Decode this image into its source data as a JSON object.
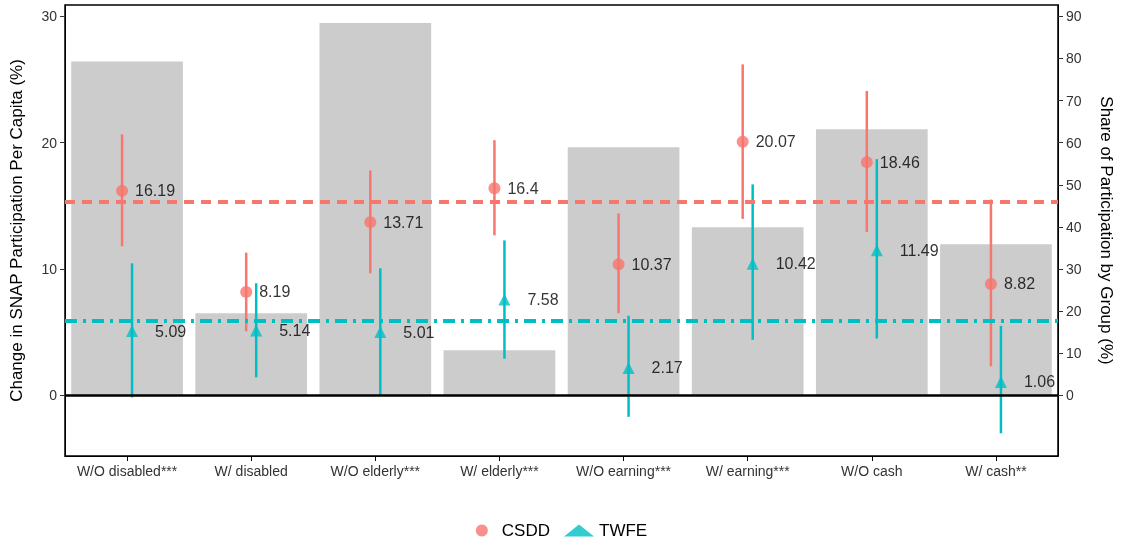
{
  "chart_data": {
    "type": "bar",
    "ylabel": "Change in SNAP Participation Per Capita (%)",
    "y2label": "Share of Participation by Group (%)",
    "categories": [
      "W/O disabled***",
      "W/ disabled",
      "W/O elderly***",
      "W/ elderly***",
      "W/O earning***",
      "W/ earning***",
      "W/O cash",
      "W/ cash**"
    ],
    "ylim": [
      -4.8,
      30.9
    ],
    "yticks": [
      0,
      10,
      20,
      30
    ],
    "y2lim": [
      -14.4,
      92.7
    ],
    "y2ticks": [
      0,
      10,
      20,
      30,
      40,
      50,
      60,
      70,
      80,
      90
    ],
    "series": [
      {
        "axis": "y2",
        "color": "#cccccc",
        "values": [
          79.3,
          19.5,
          88.4,
          10.7,
          58.9,
          39.9,
          63.2,
          35.9
        ]
      },
      {
        "type": "scatter",
        "name": "CSDD",
        "color": "#f8766d",
        "marker": "circle",
        "values": [
          16.19,
          8.19,
          13.71,
          16.4,
          10.37,
          20.07,
          18.46,
          8.82
        ],
        "value_labels": [
          "16.19",
          "8.19",
          "13.71",
          "16.4",
          "10.37",
          "20.07",
          "18.46",
          "8.82"
        ],
        "errors": [
          [
            11.8,
            20.66
          ],
          [
            5.07,
            11.3
          ],
          [
            9.66,
            17.8
          ],
          [
            12.67,
            20.2
          ],
          [
            6.5,
            14.4
          ],
          [
            13.97,
            26.2
          ],
          [
            12.94,
            24.1
          ],
          [
            2.3,
            15.5
          ]
        ]
      },
      {
        "type": "scatter",
        "name": "TWFE",
        "color": "#00bfc4",
        "marker": "triangle",
        "values": [
          5.09,
          5.14,
          5.01,
          7.58,
          2.17,
          10.42,
          11.49,
          1.06
        ],
        "value_labels": [
          "5.09",
          "5.14",
          "5.01",
          "7.58",
          "2.17",
          "10.42",
          "11.49",
          "1.06"
        ],
        "errors": [
          [
            -0.16,
            10.45
          ],
          [
            1.43,
            8.87
          ],
          [
            0,
            10.06
          ],
          [
            2.9,
            12.27
          ],
          [
            -1.7,
            6.3
          ],
          [
            4.4,
            16.7
          ],
          [
            4.5,
            18.7
          ],
          [
            -3,
            5.5
          ]
        ]
      }
    ],
    "ref_lines": [
      {
        "axis": "y",
        "value": 15.36,
        "color": "#f8766d",
        "line_style": "dashed"
      },
      {
        "axis": "y",
        "value": 5.94,
        "color": "#00bfc4",
        "line_style": "dashdot"
      },
      {
        "axis": "y",
        "value": 0,
        "color": "#000000",
        "line_style": "solid"
      }
    ],
    "legend": "bottom",
    "grid": false
  }
}
